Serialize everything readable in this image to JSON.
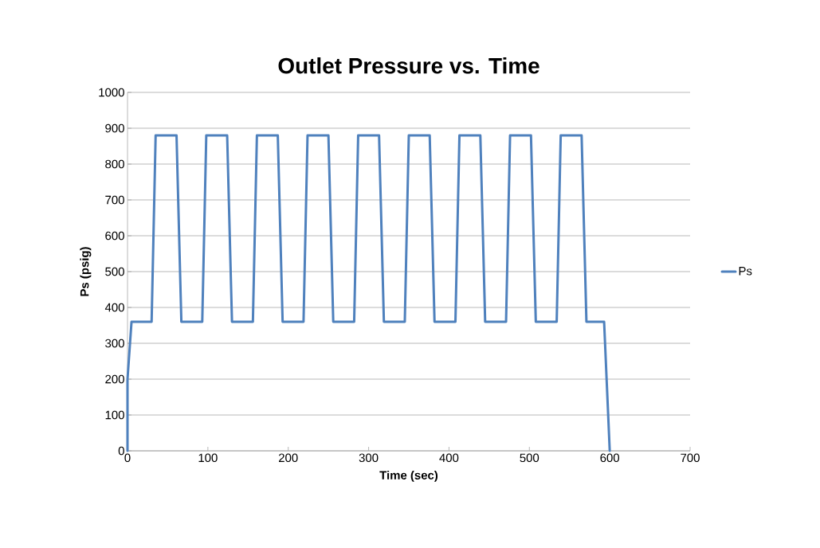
{
  "chart_data": {
    "type": "line",
    "title": "Outlet Pressure vs. Time",
    "xlabel": "Time (sec)",
    "ylabel": "Ps (psig)",
    "xlim": [
      0,
      700
    ],
    "xticks": [
      0,
      100,
      200,
      300,
      400,
      500,
      600,
      700
    ],
    "ylim": [
      0,
      1000
    ],
    "yticks": [
      0,
      100,
      200,
      300,
      400,
      500,
      600,
      700,
      800,
      900,
      1000
    ],
    "grid": "y",
    "legend": "right",
    "marker": "none",
    "line_style": "solid",
    "series": [
      {
        "name": "Ps",
        "color": "#4f81bd",
        "x": [
          0,
          0,
          5,
          30,
          35,
          61,
          67,
          93,
          98,
          124,
          130,
          156,
          161,
          187,
          193,
          219,
          224,
          250,
          256,
          282,
          287,
          313,
          319,
          345,
          350,
          376,
          382,
          408,
          413,
          439,
          445,
          471,
          476,
          502,
          508,
          534,
          539,
          565,
          571,
          593,
          600
        ],
        "values": [
          0,
          200,
          360,
          360,
          880,
          880,
          360,
          360,
          880,
          880,
          360,
          360,
          880,
          880,
          360,
          360,
          880,
          880,
          360,
          360,
          880,
          880,
          360,
          360,
          880,
          880,
          360,
          360,
          880,
          880,
          360,
          360,
          880,
          880,
          360,
          360,
          880,
          880,
          360,
          360,
          0
        ]
      }
    ]
  }
}
